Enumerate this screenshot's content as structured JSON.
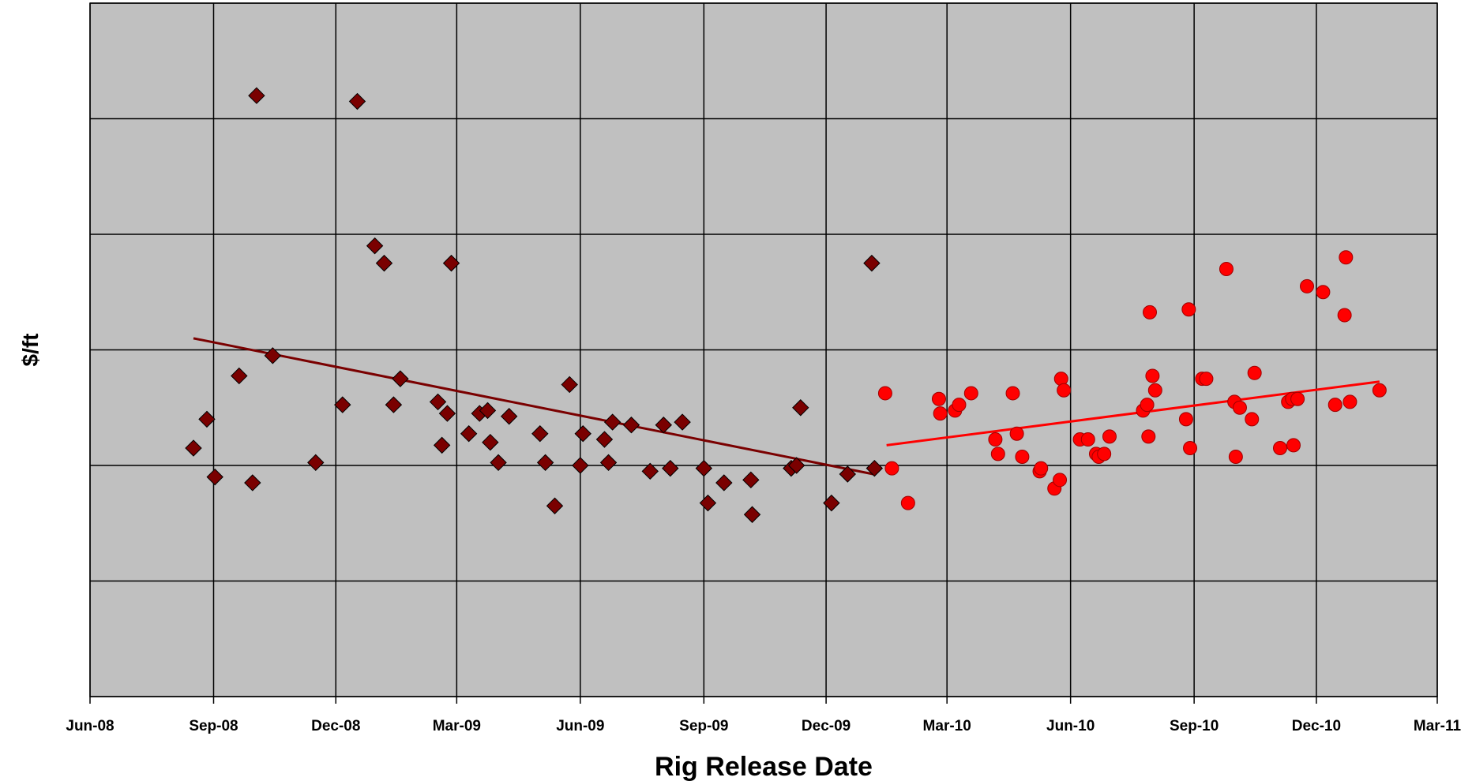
{
  "chart_data": {
    "type": "scatter",
    "title": "",
    "xlabel": "Rig Release Date",
    "ylabel": "$/ft",
    "x_ticks": [
      "Jun-08",
      "Sep-08",
      "Dec-08",
      "Mar-09",
      "Jun-09",
      "Sep-09",
      "Dec-09",
      "Mar-10",
      "Jun-10",
      "Sep-10",
      "Dec-10",
      "Mar-11"
    ],
    "xlim": [
      "Jun-08",
      "Mar-11"
    ],
    "y_gridlines": 6,
    "y_tick_labels_shown": false,
    "grid": true,
    "plot_background": "#c0c0c0",
    "series": [
      {
        "marker": "diamond",
        "color": "#7a0000",
        "points": [
          [
            "2008-08-17",
            4.3
          ],
          [
            "2008-08-27",
            4.8
          ],
          [
            "2008-09-02",
            3.8
          ],
          [
            "2008-09-20",
            5.55
          ],
          [
            "2008-09-30",
            3.7
          ],
          [
            "2008-10-03",
            10.4
          ],
          [
            "2008-10-15",
            5.9
          ],
          [
            "2008-11-16",
            4.05
          ],
          [
            "2008-12-06",
            5.05
          ],
          [
            "2008-12-17",
            10.3
          ],
          [
            "2008-12-30",
            7.8
          ],
          [
            "2009-01-06",
            7.5
          ],
          [
            "2009-01-13",
            5.05
          ],
          [
            "2009-01-18",
            5.5
          ],
          [
            "2009-02-15",
            5.1
          ],
          [
            "2009-02-18",
            4.35
          ],
          [
            "2009-02-22",
            4.9
          ],
          [
            "2009-02-25",
            7.5
          ],
          [
            "2009-03-10",
            4.55
          ],
          [
            "2009-03-18",
            4.9
          ],
          [
            "2009-03-24",
            4.95
          ],
          [
            "2009-03-26",
            4.4
          ],
          [
            "2009-04-01",
            4.05
          ],
          [
            "2009-04-09",
            4.85
          ],
          [
            "2009-05-02",
            4.55
          ],
          [
            "2009-05-06",
            4.05
          ],
          [
            "2009-05-13",
            3.3
          ],
          [
            "2009-05-24",
            5.4
          ],
          [
            "2009-06-01",
            4.0
          ],
          [
            "2009-06-03",
            4.55
          ],
          [
            "2009-06-19",
            4.45
          ],
          [
            "2009-06-22",
            4.05
          ],
          [
            "2009-06-25",
            4.75
          ],
          [
            "2009-07-09",
            4.7
          ],
          [
            "2009-07-23",
            3.9
          ],
          [
            "2009-08-02",
            4.7
          ],
          [
            "2009-08-07",
            3.95
          ],
          [
            "2009-08-16",
            4.75
          ],
          [
            "2009-09-01",
            3.95
          ],
          [
            "2009-09-04",
            3.35
          ],
          [
            "2009-09-16",
            3.7
          ],
          [
            "2009-10-06",
            3.75
          ],
          [
            "2009-10-07",
            3.15
          ],
          [
            "2009-11-05",
            3.95
          ],
          [
            "2009-11-09",
            4.0
          ],
          [
            "2009-11-12",
            5.0
          ],
          [
            "2009-12-05",
            3.35
          ],
          [
            "2009-12-17",
            3.85
          ],
          [
            "2010-01-04",
            7.5
          ],
          [
            "2010-01-06",
            3.95
          ]
        ],
        "trendline": [
          [
            "2008-08-17",
            6.2
          ],
          [
            "2010-01-05",
            3.85
          ]
        ]
      },
      {
        "marker": "circle",
        "color": "#ff0000",
        "points": [
          [
            "2010-01-14",
            5.25
          ],
          [
            "2010-01-19",
            3.95
          ],
          [
            "2010-01-31",
            3.35
          ],
          [
            "2010-02-23",
            5.15
          ],
          [
            "2010-02-24",
            4.9
          ],
          [
            "2010-03-07",
            4.95
          ],
          [
            "2010-03-10",
            5.05
          ],
          [
            "2010-03-19",
            5.25
          ],
          [
            "2010-04-06",
            4.45
          ],
          [
            "2010-04-08",
            4.2
          ],
          [
            "2010-04-19",
            5.25
          ],
          [
            "2010-04-22",
            4.55
          ],
          [
            "2010-04-26",
            4.15
          ],
          [
            "2010-05-09",
            3.9
          ],
          [
            "2010-05-10",
            3.95
          ],
          [
            "2010-05-20",
            3.6
          ],
          [
            "2010-05-24",
            3.75
          ],
          [
            "2010-05-25",
            5.5
          ],
          [
            "2010-05-27",
            5.3
          ],
          [
            "2010-06-08",
            4.45
          ],
          [
            "2010-06-14",
            4.45
          ],
          [
            "2010-06-20",
            4.2
          ],
          [
            "2010-06-22",
            4.15
          ],
          [
            "2010-06-26",
            4.2
          ],
          [
            "2010-06-30",
            4.5
          ],
          [
            "2010-07-25",
            4.95
          ],
          [
            "2010-07-28",
            5.05
          ],
          [
            "2010-07-29",
            4.5
          ],
          [
            "2010-07-30",
            6.65
          ],
          [
            "2010-08-01",
            5.55
          ],
          [
            "2010-08-03",
            5.3
          ],
          [
            "2010-08-26",
            4.8
          ],
          [
            "2010-08-28",
            6.7
          ],
          [
            "2010-08-29",
            4.3
          ],
          [
            "2010-09-07",
            5.5
          ],
          [
            "2010-09-10",
            5.5
          ],
          [
            "2010-09-25",
            7.4
          ],
          [
            "2010-10-01",
            5.1
          ],
          [
            "2010-10-02",
            4.15
          ],
          [
            "2010-10-05",
            5.0
          ],
          [
            "2010-10-14",
            4.8
          ],
          [
            "2010-10-16",
            5.6
          ],
          [
            "2010-11-04",
            4.3
          ],
          [
            "2010-11-10",
            5.1
          ],
          [
            "2010-11-13",
            5.15
          ],
          [
            "2010-11-14",
            4.35
          ],
          [
            "2010-11-17",
            5.15
          ],
          [
            "2010-11-24",
            7.1
          ],
          [
            "2010-12-06",
            7.0
          ],
          [
            "2010-12-15",
            5.05
          ],
          [
            "2010-12-22",
            6.6
          ],
          [
            "2010-12-23",
            7.6
          ],
          [
            "2010-12-26",
            5.1
          ],
          [
            "2011-01-17",
            5.3
          ]
        ],
        "trendline": [
          [
            "2010-01-15",
            4.35
          ],
          [
            "2011-01-17",
            5.45
          ]
        ]
      }
    ]
  }
}
